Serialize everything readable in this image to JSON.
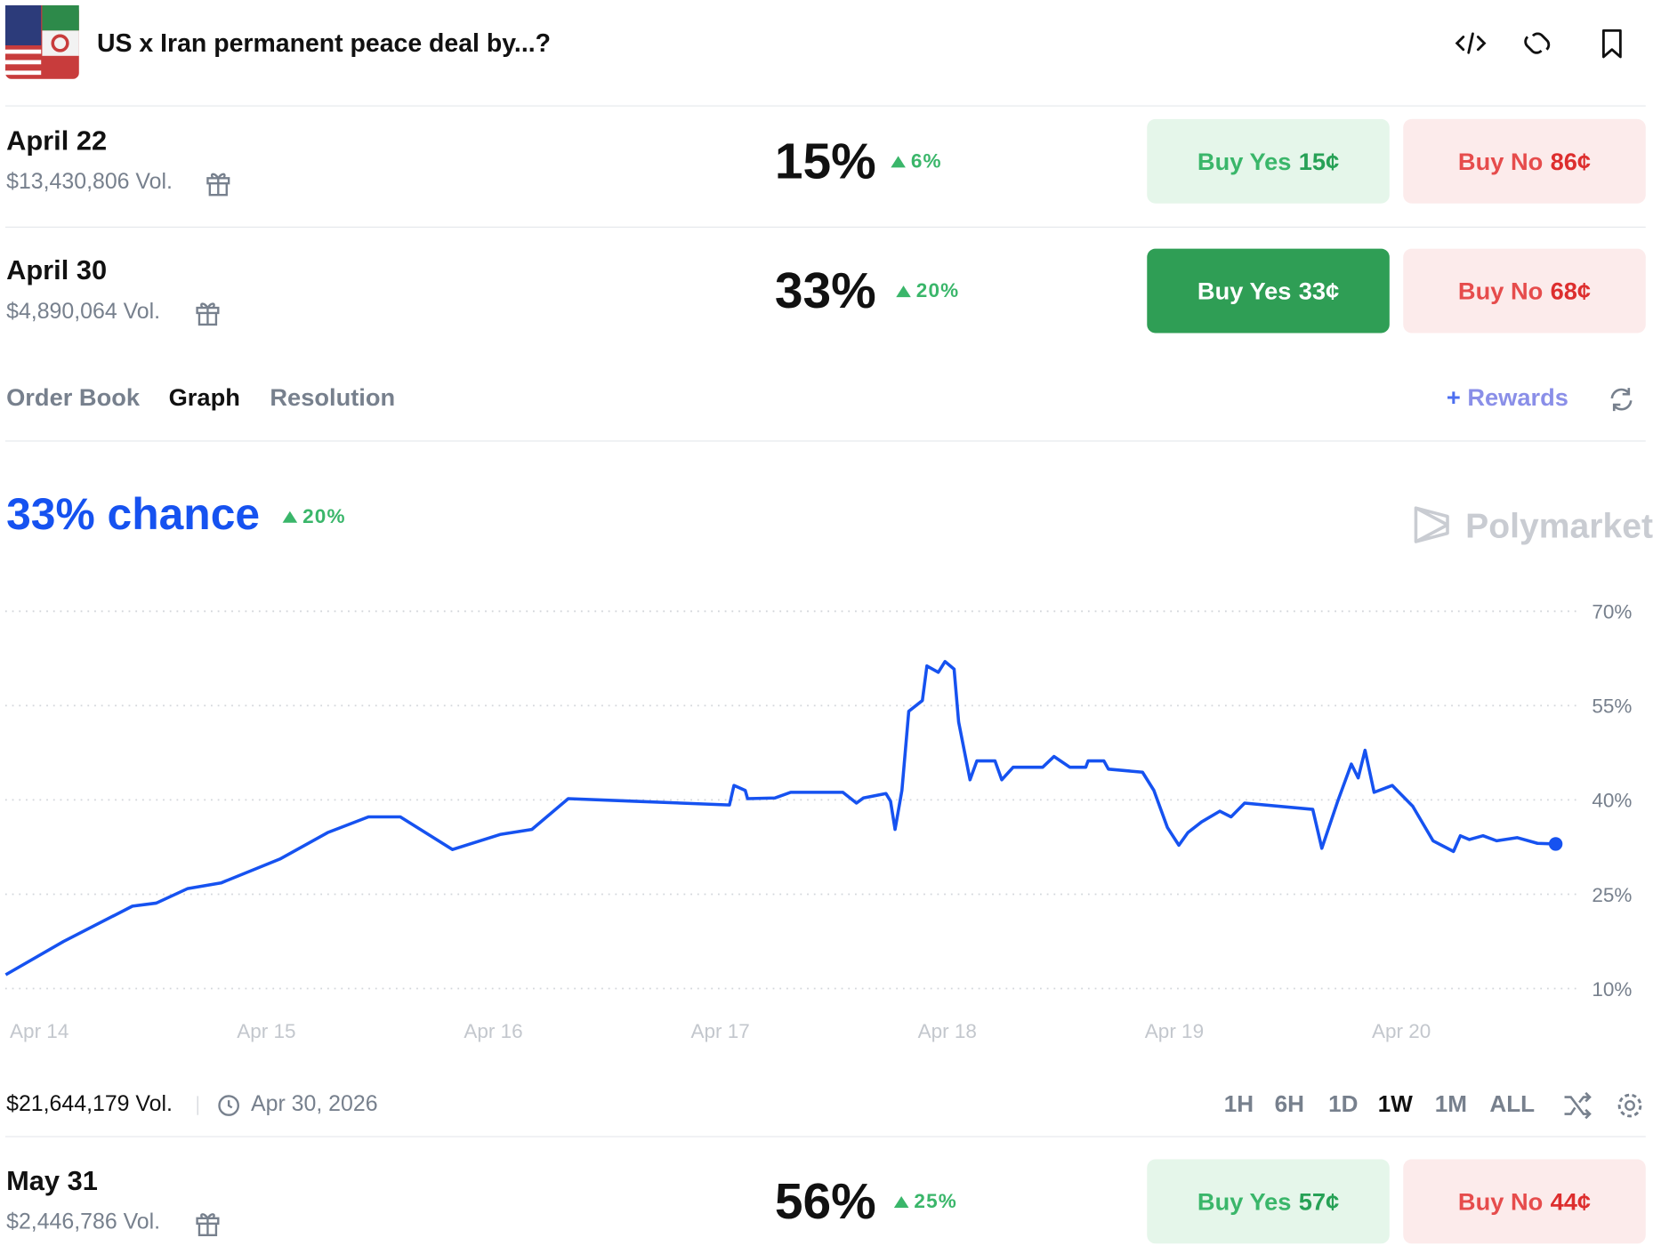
{
  "header": {
    "title": "US x Iran permanent peace deal by...?"
  },
  "markets": [
    {
      "date": "April 22",
      "volume": "$13,430,806 Vol.",
      "chance": "15%",
      "change": "6%",
      "yes_label": "Buy Yes",
      "yes_price": "15¢",
      "no_label": "Buy No",
      "no_price": "86¢"
    },
    {
      "date": "April 30",
      "volume": "$4,890,064 Vol.",
      "chance": "33%",
      "change": "20%",
      "yes_label": "Buy Yes",
      "yes_price": "33¢",
      "no_label": "Buy No",
      "no_price": "68¢"
    },
    {
      "date": "May 31",
      "volume": "$2,446,786 Vol.",
      "chance": "56%",
      "change": "25%",
      "yes_label": "Buy Yes",
      "yes_price": "57¢",
      "no_label": "Buy No",
      "no_price": "44¢"
    }
  ],
  "tabs": [
    "Order Book",
    "Graph",
    "Resolution"
  ],
  "rewards": "Rewards",
  "graph_header": {
    "chance": "33% chance",
    "change": "20%",
    "watermark": "Polymarket"
  },
  "chart_data": {
    "type": "line",
    "x": [
      -0.148,
      0.107,
      0.41,
      0.515,
      0.654,
      0.8,
      1.06,
      1.27,
      1.45,
      1.59,
      1.82,
      2.03,
      2.17,
      2.33,
      2.61,
      3.04,
      3.06,
      3.11,
      3.12,
      3.24,
      3.31,
      3.54,
      3.6,
      3.63,
      3.73,
      3.75,
      3.77,
      3.8,
      3.83,
      3.89,
      3.91,
      3.96,
      3.99,
      4.03,
      4.05,
      4.1,
      4.13,
      4.21,
      4.24,
      4.29,
      4.42,
      4.47,
      4.54,
      4.61,
      4.62,
      4.69,
      4.71,
      4.86,
      4.91,
      4.97,
      5.02,
      5.06,
      5.12,
      5.2,
      5.25,
      5.31,
      5.61,
      5.65,
      5.72,
      5.78,
      5.81,
      5.84,
      5.88,
      5.96,
      6.05,
      6.14,
      6.23,
      6.26,
      6.3,
      6.36,
      6.42,
      6.51,
      6.6,
      6.68
    ],
    "series": [
      {
        "color": "#1652f0",
        "values": [
          12.2,
          17.5,
          23.1,
          23.6,
          25.9,
          26.8,
          30.6,
          34.8,
          37.3,
          37.3,
          32.1,
          34.5,
          35.3,
          40.2,
          39.8,
          39.2,
          42.3,
          41.5,
          40.2,
          40.3,
          41.2,
          41.2,
          39.5,
          40.3,
          41.0,
          39.8,
          35.3,
          41.5,
          54.1,
          55.8,
          61.3,
          60.3,
          62.0,
          60.8,
          52.4,
          43.2,
          46.2,
          46.2,
          43.2,
          45.2,
          45.2,
          46.9,
          45.2,
          45.2,
          46.2,
          46.2,
          44.9,
          44.4,
          41.5,
          35.6,
          32.8,
          34.8,
          36.5,
          38.2,
          37.3,
          39.5,
          38.5,
          32.3,
          39.8,
          45.7,
          43.5,
          47.9,
          41.2,
          42.3,
          39.0,
          33.5,
          31.8,
          34.3,
          33.7,
          34.3,
          33.5,
          34.0,
          33.1,
          33
        ]
      }
    ],
    "xlim": [
      -0.15,
      6.77
    ],
    "ylim": [
      10,
      70
    ],
    "xticks": [
      {
        "value": 0,
        "label": "Apr 14"
      },
      {
        "value": 1,
        "label": "Apr 15"
      },
      {
        "value": 2,
        "label": "Apr 16"
      },
      {
        "value": 3,
        "label": "Apr 17"
      },
      {
        "value": 4,
        "label": "Apr 18"
      },
      {
        "value": 5,
        "label": "Apr 19"
      },
      {
        "value": 6,
        "label": "Apr 20"
      }
    ],
    "yticks": [
      {
        "value": 10,
        "label": "10%"
      },
      {
        "value": 25,
        "label": "25%"
      },
      {
        "value": 40,
        "label": "40%"
      },
      {
        "value": 55,
        "label": "55%"
      },
      {
        "value": 70,
        "label": "70%"
      }
    ],
    "grid": true
  },
  "footer": {
    "volume": "$21,644,179 Vol.",
    "end_date": "Apr 30, 2026",
    "ranges": [
      "1H",
      "6H",
      "1D",
      "1W",
      "1M",
      "ALL"
    ]
  }
}
